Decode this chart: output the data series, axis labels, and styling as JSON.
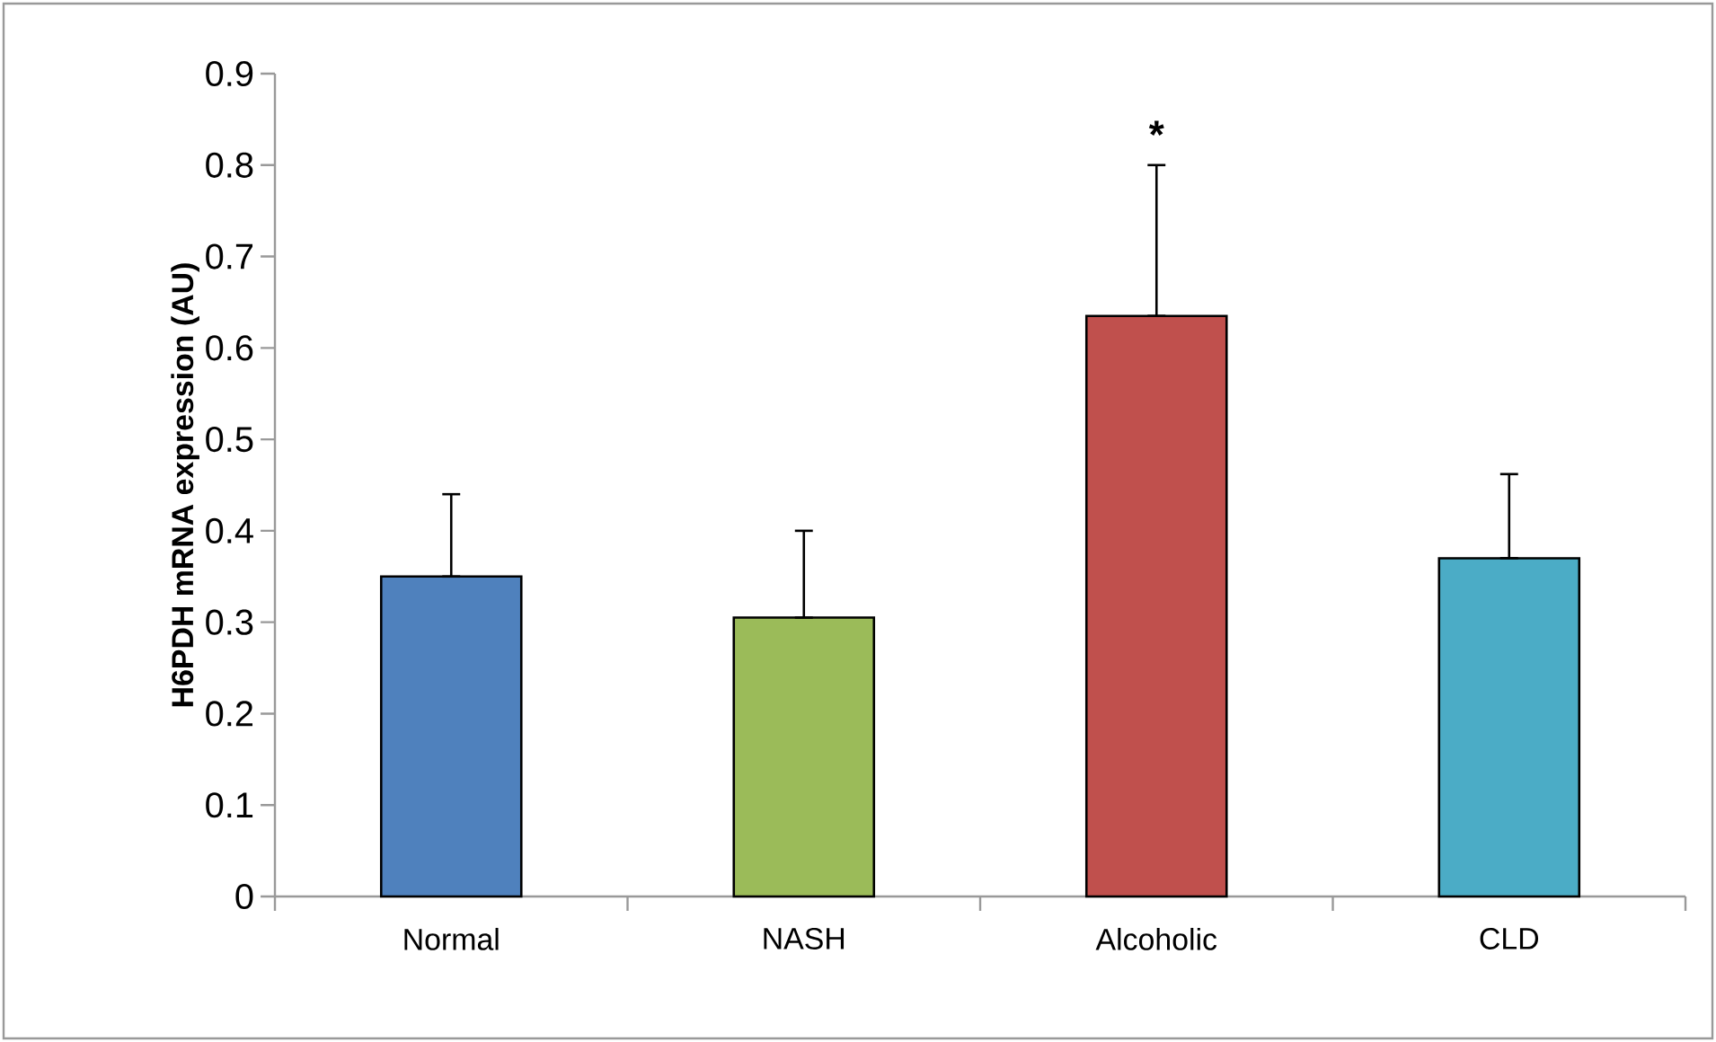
{
  "chart_data": {
    "type": "bar",
    "ylabel": "H6PDH mRNA expression (AU)",
    "categories": [
      "Normal",
      "NASH",
      "Alcoholic",
      "CLD"
    ],
    "values": [
      0.35,
      0.305,
      0.635,
      0.37
    ],
    "errors": [
      [
        0.35,
        0.44
      ],
      [
        0.305,
        0.4
      ],
      [
        0.635,
        0.8
      ],
      [
        0.37,
        0.462
      ]
    ],
    "colors": [
      "#4f81bd",
      "#9bbb59",
      "#c0504d",
      "#4bacc6"
    ],
    "ylim": [
      0,
      0.9
    ],
    "yticks": [
      0,
      0.1,
      0.2,
      0.3,
      0.4,
      0.5,
      0.6,
      0.7,
      0.8,
      0.9
    ],
    "annotations": [
      "*"
    ],
    "grid": false
  }
}
